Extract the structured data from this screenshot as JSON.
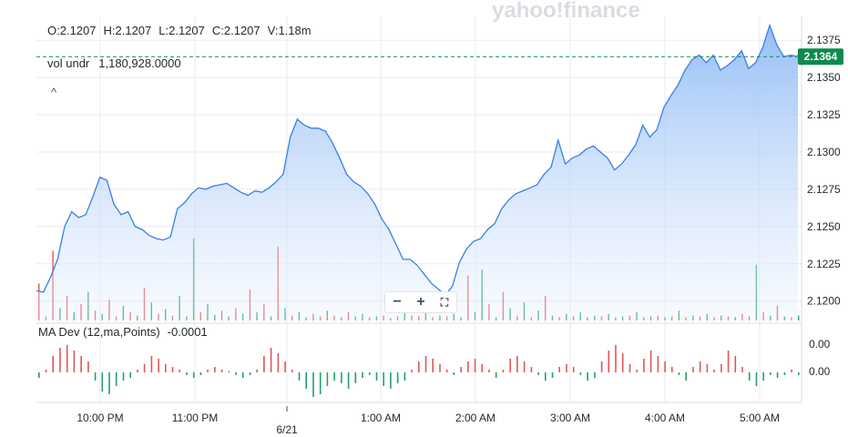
{
  "watermark": "yahoo!finance",
  "ohlc": {
    "open": "O:2.1207",
    "high": "H:2.1207",
    "low": "L:2.1207",
    "close": "C:2.1207",
    "volume": "V:1.18m"
  },
  "vol_indicator": {
    "name": "vol undr",
    "value": "1,180,928.0000"
  },
  "collapse_glyph": "^",
  "zoom": {
    "minus": "−",
    "plus": "+",
    "fullscreen": "⛶"
  },
  "ma_dev": {
    "name": "MA Dev (12,ma,Points)",
    "value": "-0.0001"
  },
  "current_price": "2.1364",
  "colors": {
    "line": "#3b7de8",
    "up": "#24a069",
    "down": "#e25656",
    "price_tag": "#0e8a4f",
    "grid": "#e8ebef"
  },
  "chart_data": {
    "type": "area",
    "title": "",
    "x_ticks": [
      "10:00 PM",
      "11:00 PM",
      "6/21",
      "1:00 AM",
      "2:00 AM",
      "3:00 AM",
      "4:00 AM",
      "5:00 AM"
    ],
    "y_ticks": [
      "2.1375",
      "2.1350",
      "2.1325",
      "2.1300",
      "2.1275",
      "2.1250",
      "2.1225",
      "2.1200"
    ],
    "ylim": [
      2.1187,
      2.1391
    ],
    "current_price": 2.1364,
    "ma_dev_ticks": [
      "0.00",
      "0.00"
    ],
    "series": [
      {
        "values": [
          2.1207,
          2.1206,
          2.1216,
          2.1228,
          2.125,
          2.126,
          2.1256,
          2.1258,
          2.127,
          2.1283,
          2.1281,
          2.1265,
          2.1258,
          2.126,
          2.125,
          2.1248,
          2.1244,
          2.1242,
          2.1241,
          2.1243,
          2.1262,
          2.1266,
          2.1272,
          2.1276,
          2.1275,
          2.1277,
          2.1278,
          2.1279,
          2.1276,
          2.1273,
          2.1271,
          2.1274,
          2.1273,
          2.1276,
          2.128,
          2.1285,
          2.131,
          2.1322,
          2.1318,
          2.1316,
          2.1316,
          2.1314,
          2.1306,
          2.1296,
          2.1285,
          2.128,
          2.1277,
          2.1272,
          2.1265,
          2.1255,
          2.1248,
          2.1238,
          2.1228,
          2.1228,
          2.1224,
          2.1218,
          2.1212,
          2.1208,
          2.1204,
          2.121,
          2.1226,
          2.1235,
          2.124,
          2.1242,
          2.1248,
          2.1252,
          2.1262,
          2.1268,
          2.1272,
          2.1274,
          2.1276,
          2.1278,
          2.1285,
          2.129,
          2.1308,
          2.1292,
          2.1296,
          2.1298,
          2.1302,
          2.1304,
          2.13,
          2.1296,
          2.1288,
          2.1292,
          2.1298,
          2.1305,
          2.1318,
          2.131,
          2.1315,
          2.133,
          2.1338,
          2.1345,
          2.1355,
          2.1362,
          2.1365,
          2.136,
          2.1365,
          2.1355,
          2.1358,
          2.1362,
          2.1368,
          2.1356,
          2.136,
          2.137,
          2.1385,
          2.1372,
          2.1364,
          2.1365,
          2.1364
        ]
      }
    ],
    "volume_bars": [
      {
        "v": 0.45,
        "up": false
      },
      {
        "v": 0.05,
        "up": false
      },
      {
        "v": 0.85,
        "up": false
      },
      {
        "v": 0.15,
        "up": true
      },
      {
        "v": 0.3,
        "up": false
      },
      {
        "v": 0.1,
        "up": true
      },
      {
        "v": 0.2,
        "up": false
      },
      {
        "v": 0.35,
        "up": true
      },
      {
        "v": 0.12,
        "up": false
      },
      {
        "v": 0.08,
        "up": true
      },
      {
        "v": 0.25,
        "up": false
      },
      {
        "v": 0.05,
        "up": false
      },
      {
        "v": 0.18,
        "up": true
      },
      {
        "v": 0.1,
        "up": false
      },
      {
        "v": 0.06,
        "up": true
      },
      {
        "v": 0.4,
        "up": false
      },
      {
        "v": 0.22,
        "up": true
      },
      {
        "v": 0.08,
        "up": false
      },
      {
        "v": 0.14,
        "up": true
      },
      {
        "v": 0.06,
        "up": false
      },
      {
        "v": 0.3,
        "up": true
      },
      {
        "v": 0.05,
        "up": true
      },
      {
        "v": 1.0,
        "up": true
      },
      {
        "v": 0.1,
        "up": false
      },
      {
        "v": 0.2,
        "up": true
      },
      {
        "v": 0.07,
        "up": true
      },
      {
        "v": 0.12,
        "up": false
      },
      {
        "v": 0.05,
        "up": true
      },
      {
        "v": 0.15,
        "up": false
      },
      {
        "v": 0.08,
        "up": true
      },
      {
        "v": 0.38,
        "up": false
      },
      {
        "v": 0.1,
        "up": true
      },
      {
        "v": 0.2,
        "up": false
      },
      {
        "v": 0.05,
        "up": true
      },
      {
        "v": 0.9,
        "up": false
      },
      {
        "v": 0.15,
        "up": true
      },
      {
        "v": 0.06,
        "up": false
      },
      {
        "v": 0.1,
        "up": true
      },
      {
        "v": 0.04,
        "up": true
      },
      {
        "v": 0.08,
        "up": false
      },
      {
        "v": 0.05,
        "up": false
      },
      {
        "v": 0.12,
        "up": true
      },
      {
        "v": 0.06,
        "up": false
      },
      {
        "v": 0.04,
        "up": true
      },
      {
        "v": 0.1,
        "up": false
      },
      {
        "v": 0.05,
        "up": true
      },
      {
        "v": 0.08,
        "up": true
      },
      {
        "v": 0.04,
        "up": false
      },
      {
        "v": 0.05,
        "up": true
      },
      {
        "v": 0.06,
        "up": false
      },
      {
        "v": 0.03,
        "up": true
      },
      {
        "v": 0.05,
        "up": false
      },
      {
        "v": 0.28,
        "up": true
      },
      {
        "v": 0.06,
        "up": false
      },
      {
        "v": 0.05,
        "up": false
      },
      {
        "v": 0.1,
        "up": true
      },
      {
        "v": 0.04,
        "up": false
      },
      {
        "v": 0.06,
        "up": true
      },
      {
        "v": 0.05,
        "up": false
      },
      {
        "v": 0.08,
        "up": true
      },
      {
        "v": 0.04,
        "up": true
      },
      {
        "v": 0.55,
        "up": false
      },
      {
        "v": 0.1,
        "up": true
      },
      {
        "v": 0.62,
        "up": true
      },
      {
        "v": 0.2,
        "up": false
      },
      {
        "v": 0.04,
        "up": true
      },
      {
        "v": 0.35,
        "up": false
      },
      {
        "v": 0.15,
        "up": true
      },
      {
        "v": 0.06,
        "up": false
      },
      {
        "v": 0.22,
        "up": true
      },
      {
        "v": 0.04,
        "up": false
      },
      {
        "v": 0.12,
        "up": true
      },
      {
        "v": 0.3,
        "up": false
      },
      {
        "v": 0.06,
        "up": true
      },
      {
        "v": 0.04,
        "up": false
      },
      {
        "v": 0.08,
        "up": true
      },
      {
        "v": 0.05,
        "up": false
      },
      {
        "v": 0.1,
        "up": true
      },
      {
        "v": 0.04,
        "up": false
      },
      {
        "v": 0.06,
        "up": true
      },
      {
        "v": 0.05,
        "up": false
      },
      {
        "v": 0.08,
        "up": true
      },
      {
        "v": 0.04,
        "up": false
      },
      {
        "v": 0.05,
        "up": true
      },
      {
        "v": 0.06,
        "up": false
      },
      {
        "v": 0.1,
        "up": true
      },
      {
        "v": 0.04,
        "up": false
      },
      {
        "v": 0.05,
        "up": true
      },
      {
        "v": 0.06,
        "up": false
      },
      {
        "v": 0.04,
        "up": true
      },
      {
        "v": 0.05,
        "up": false
      },
      {
        "v": 0.12,
        "up": true
      },
      {
        "v": 0.04,
        "up": false
      },
      {
        "v": 0.06,
        "up": true
      },
      {
        "v": 0.05,
        "up": false
      },
      {
        "v": 0.08,
        "up": true
      },
      {
        "v": 0.04,
        "up": false
      },
      {
        "v": 0.06,
        "up": true
      },
      {
        "v": 0.05,
        "up": false
      },
      {
        "v": 0.04,
        "up": true
      },
      {
        "v": 0.08,
        "up": false
      },
      {
        "v": 0.05,
        "up": true
      },
      {
        "v": 0.68,
        "up": true
      },
      {
        "v": 0.1,
        "up": false
      },
      {
        "v": 0.06,
        "up": true
      },
      {
        "v": 0.18,
        "up": false
      },
      {
        "v": 0.05,
        "up": true
      },
      {
        "v": 0.04,
        "up": false
      },
      {
        "v": 0.06,
        "up": true
      }
    ],
    "ma_dev_values": [
      -0.2,
      0.1,
      0.6,
      0.9,
      1.0,
      0.8,
      0.6,
      0.4,
      -0.3,
      -0.7,
      -0.8,
      -0.5,
      -0.3,
      -0.2,
      0.1,
      0.3,
      0.6,
      0.5,
      0.3,
      0.2,
      0.1,
      -0.1,
      -0.2,
      -0.1,
      0.1,
      0.2,
      0.1,
      0.05,
      -0.1,
      -0.2,
      -0.1,
      0.1,
      0.6,
      0.9,
      0.7,
      0.4,
      0.1,
      -0.3,
      -0.6,
      -0.9,
      -0.8,
      -0.5,
      -0.3,
      -0.4,
      -0.6,
      -0.4,
      -0.2,
      -0.1,
      -0.3,
      -0.5,
      -0.6,
      -0.4,
      -0.3,
      0.1,
      0.4,
      0.6,
      0.5,
      0.3,
      0.1,
      -0.1,
      0.2,
      0.4,
      0.5,
      0.3,
      0.1,
      -0.2,
      0.1,
      0.5,
      0.6,
      0.4,
      0.2,
      -0.1,
      -0.3,
      -0.2,
      0.2,
      0.3,
      0.2,
      -0.1,
      -0.3,
      -0.2,
      0.4,
      0.8,
      1.0,
      0.7,
      0.3,
      0.1,
      0.5,
      0.8,
      0.6,
      0.4,
      0.2,
      -0.1,
      -0.3,
      0.2,
      0.4,
      0.3,
      0.1,
      0.3,
      0.8,
      0.6,
      0.2,
      -0.3,
      -0.5,
      -0.3,
      -0.1,
      -0.2,
      -0.1,
      0.1,
      -0.1
    ]
  }
}
